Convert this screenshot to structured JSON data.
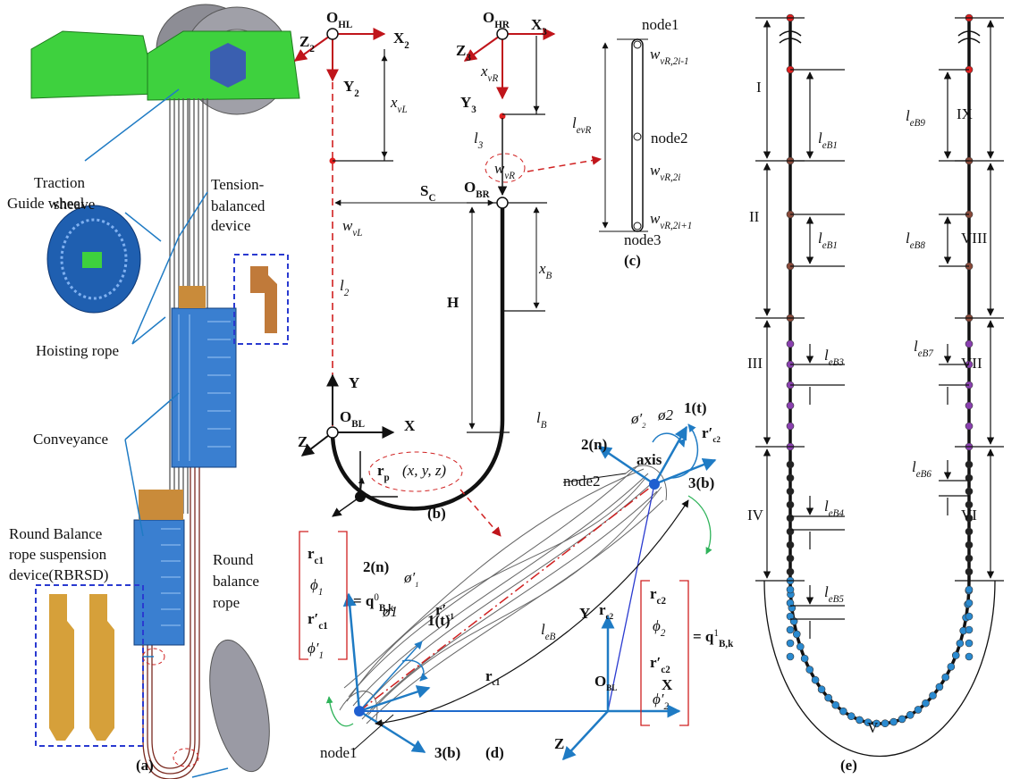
{
  "panel_a": {
    "caption": "(a)",
    "labels": [
      {
        "t": "Traction"
      },
      {
        "t": "sheave"
      },
      {
        "t": "Guide wheel"
      },
      {
        "t": "Tension-"
      },
      {
        "t": "balanced"
      },
      {
        "t": "device"
      },
      {
        "t": "Hoisting rope"
      },
      {
        "t": "Conveyance"
      },
      {
        "t": "Round Balance"
      },
      {
        "t": "rope suspension"
      },
      {
        "t": "device(RBRSD)"
      },
      {
        "t": "Round"
      },
      {
        "t": "balance"
      },
      {
        "t": "rope"
      }
    ]
  },
  "panel_b": {
    "caption": "(b)",
    "labels": [
      {
        "t": "O",
        "s": "HL"
      },
      {
        "t": "X",
        "s": "2"
      },
      {
        "t": "Z",
        "s": "2"
      },
      {
        "t": "Y",
        "s": "2"
      },
      {
        "t": "x",
        "s": "vL"
      },
      {
        "t": "O",
        "s": "HR"
      },
      {
        "t": "X",
        "s": "3"
      },
      {
        "t": "Z",
        "s": "3"
      },
      {
        "t": "x",
        "s": "vR"
      },
      {
        "t": "Y",
        "s": "3"
      },
      {
        "t": "l",
        "s": "3"
      },
      {
        "t": "S",
        "s": "C"
      },
      {
        "t": "O",
        "s": "BR"
      },
      {
        "t": "w",
        "s": "vL"
      },
      {
        "t": "l",
        "s": "2"
      },
      {
        "t": "H"
      },
      {
        "t": "x",
        "s": "B"
      },
      {
        "t": "Y"
      },
      {
        "t": "O",
        "s": "BL"
      },
      {
        "t": "X"
      },
      {
        "t": "Z"
      },
      {
        "t": "l",
        "s": "B"
      },
      {
        "t": "r",
        "s": "p"
      },
      {
        "t": "(x, y, z)"
      },
      {
        "t": "w",
        "s": "vR"
      }
    ]
  },
  "panel_c": {
    "caption": "(c)",
    "labels": [
      {
        "t": "node1"
      },
      {
        "t": "w",
        "s": "vR,2i-1"
      },
      {
        "t": "l",
        "s": "evR"
      },
      {
        "t": "node2"
      },
      {
        "t": "w",
        "s": "vR,2i"
      },
      {
        "t": "w",
        "s": "vR,2i+1"
      },
      {
        "t": "node3"
      }
    ]
  },
  "panel_d": {
    "caption": "(d)",
    "labels": [
      {
        "t": "r",
        "s": "c1"
      },
      {
        "t": "ϕ",
        "s": "1"
      },
      {
        "t": "r′",
        "s": "c1"
      },
      {
        "t": "ϕ′",
        "s": "1"
      },
      {
        "t": "= q",
        "sup": "0",
        "s": "B,k"
      },
      {
        "t": "2(n)"
      },
      {
        "t": "ø′",
        "s": "1"
      },
      {
        "t": "ø1"
      },
      {
        "t": "r′",
        "s": "c1"
      },
      {
        "t": "1(t)"
      },
      {
        "t": "l",
        "s": "eB"
      },
      {
        "t": "Y"
      },
      {
        "t": "r",
        "s": "c2"
      },
      {
        "t": "X"
      },
      {
        "t": "r",
        "s": "c1"
      },
      {
        "t": "O",
        "s": "BL"
      },
      {
        "t": "Z"
      },
      {
        "t": "node1"
      },
      {
        "t": "3(b)"
      },
      {
        "t": "node2"
      },
      {
        "t": "axis"
      },
      {
        "t": "2(n)"
      },
      {
        "t": "ø′",
        "s": "2"
      },
      {
        "t": "ø2"
      },
      {
        "t": "1(t)"
      },
      {
        "t": "r′",
        "s": "c2"
      },
      {
        "t": "3(b)"
      },
      {
        "t": "r",
        "s": "c2"
      },
      {
        "t": "ϕ",
        "s": "2"
      },
      {
        "t": "r′",
        "s": "c2"
      },
      {
        "t": "ϕ′",
        "s": "2"
      },
      {
        "t": "= q",
        "sup": "1",
        "s": "B,k"
      }
    ]
  },
  "panel_e": {
    "caption": "(e)",
    "labels": [
      {
        "t": "I"
      },
      {
        "t": "II"
      },
      {
        "t": "III"
      },
      {
        "t": "IV"
      },
      {
        "t": "V"
      },
      {
        "t": "VI"
      },
      {
        "t": "VII"
      },
      {
        "t": "VIII"
      },
      {
        "t": "IX"
      },
      {
        "t": "l",
        "s": "eB1"
      },
      {
        "t": "l",
        "s": "eB1"
      },
      {
        "t": "l",
        "s": "eB3"
      },
      {
        "t": "l",
        "s": "eB4"
      },
      {
        "t": "l",
        "s": "eB5"
      },
      {
        "t": "l",
        "s": "eB9"
      },
      {
        "t": "l",
        "s": "eB8"
      },
      {
        "t": "l",
        "s": "eB7"
      },
      {
        "t": "l",
        "s": "eB6"
      }
    ]
  }
}
